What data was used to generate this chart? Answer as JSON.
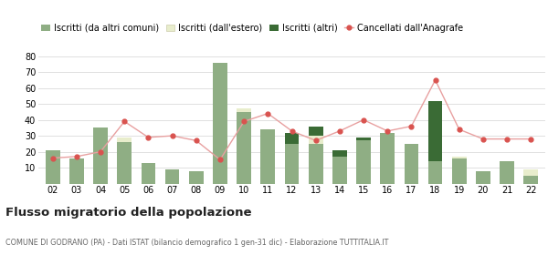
{
  "years": [
    "02",
    "03",
    "04",
    "05",
    "06",
    "07",
    "08",
    "09",
    "10",
    "11",
    "12",
    "13",
    "14",
    "15",
    "16",
    "17",
    "18",
    "19",
    "20",
    "21",
    "22"
  ],
  "iscritti_altri_comuni": [
    21,
    16,
    35,
    26,
    13,
    9,
    8,
    76,
    45,
    34,
    25,
    25,
    17,
    27,
    32,
    25,
    14,
    16,
    8,
    14,
    5
  ],
  "iscritti_estero": [
    0,
    0,
    0,
    3,
    0,
    0,
    0,
    0,
    2,
    0,
    0,
    5,
    0,
    0,
    0,
    0,
    0,
    1,
    0,
    0,
    4
  ],
  "iscritti_altri": [
    0,
    0,
    0,
    0,
    0,
    0,
    0,
    0,
    0,
    0,
    7,
    6,
    4,
    2,
    0,
    0,
    38,
    0,
    0,
    0,
    0
  ],
  "cancellati": [
    16,
    17,
    20,
    39,
    29,
    30,
    27,
    15,
    39,
    44,
    33,
    27,
    33,
    40,
    33,
    36,
    65,
    34,
    28,
    28,
    28
  ],
  "color_altri_comuni": "#8fae84",
  "color_estero": "#e8edcc",
  "color_altri": "#3a6b35",
  "color_cancellati": "#d9534f",
  "color_cancellati_line": "#e8a0a0",
  "ylim": [
    0,
    80
  ],
  "yticks": [
    0,
    10,
    20,
    30,
    40,
    50,
    60,
    70,
    80
  ],
  "title": "Flusso migratorio della popolazione",
  "subtitle": "COMUNE DI GODRANO (PA) - Dati ISTAT (bilancio demografico 1 gen-31 dic) - Elaborazione TUTTITALIA.IT",
  "legend_labels": [
    "Iscritti (da altri comuni)",
    "Iscritti (dall'estero)",
    "Iscritti (altri)",
    "Cancellati dall'Anagrafe"
  ],
  "background_color": "#ffffff",
  "grid_color": "#e0e0e0"
}
